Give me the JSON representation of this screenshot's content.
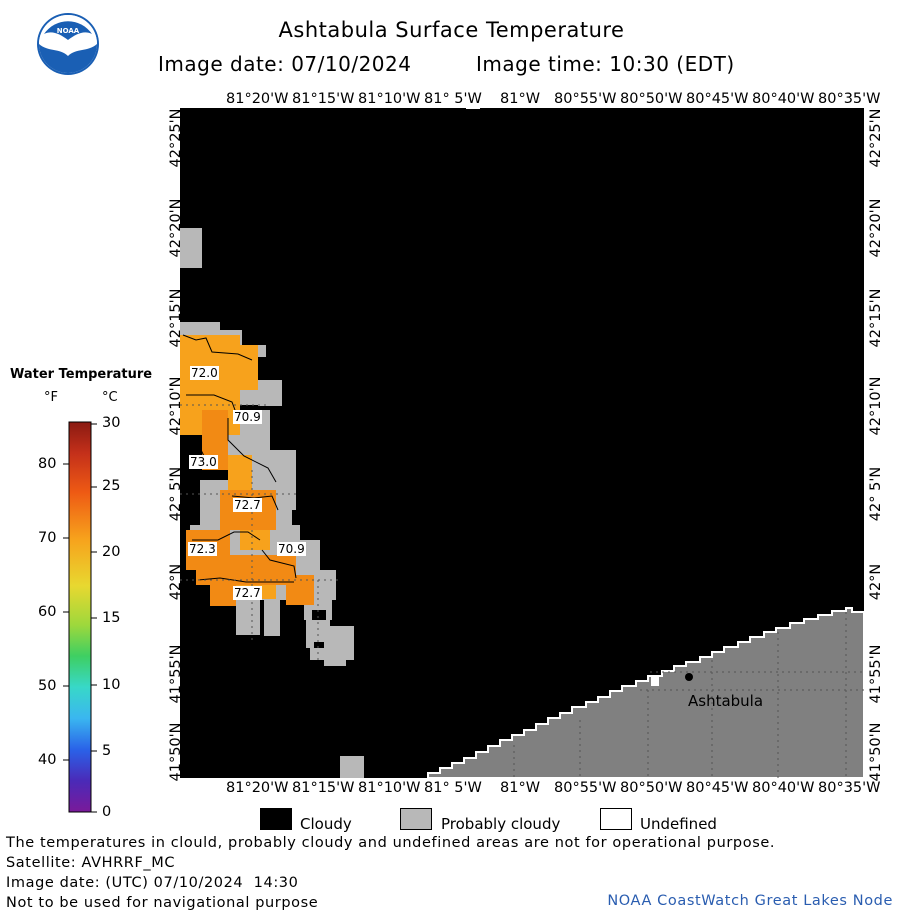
{
  "header": {
    "title": "Ashtabula Surface Temperature",
    "image_date": "Image date: 07/10/2024",
    "image_time": "Image time: 10:30 (EDT)"
  },
  "map": {
    "lon_labels": [
      "81°20'W",
      "81°15'W",
      "81°10'W",
      "81° 5'W",
      "81°W",
      "80°55'W",
      "80°50'W",
      "80°45'W",
      "80°40'W",
      "80°35'W"
    ],
    "lat_labels": [
      "42°25'N",
      "42°20'N",
      "42°15'N",
      "42°10'N",
      "42° 5'N",
      "42°N",
      "41°55'N",
      "41°50'N"
    ],
    "place_label": "Ashtabula",
    "contour_labels": [
      "72.0",
      "70.9",
      "73.0",
      "72.7",
      "72.3",
      "70.9",
      "72.7"
    ],
    "colors": {
      "cloudy": "#000000",
      "probably_cloudy": "#b8b8b8",
      "land": "#808080",
      "water_warm": "#f7a21c",
      "water_hot": "#f28a14"
    }
  },
  "legend": {
    "title": "Water Temperature",
    "unit_f": "°F",
    "unit_c": "°C",
    "fahrenheit_ticks": [
      "80",
      "70",
      "60",
      "50",
      "40"
    ],
    "celsius_ticks": [
      "30",
      "25",
      "20",
      "15",
      "10",
      "5",
      "0"
    ]
  },
  "key": {
    "cloudy": "Cloudy",
    "probably_cloudy": "Probably cloudy",
    "undefined": "Undefined"
  },
  "footer": {
    "disclaimer": "The temperatures in clould, probably cloudy and undefined areas are not for operational purpose.",
    "satellite": "Satellite: AVHRRF_MC",
    "utc_date": "Image date: (UTC) 07/10/2024  14:30",
    "navigation": "Not to be used for navigational purpose",
    "credit": "NOAA CoastWatch Great Lakes Node"
  }
}
